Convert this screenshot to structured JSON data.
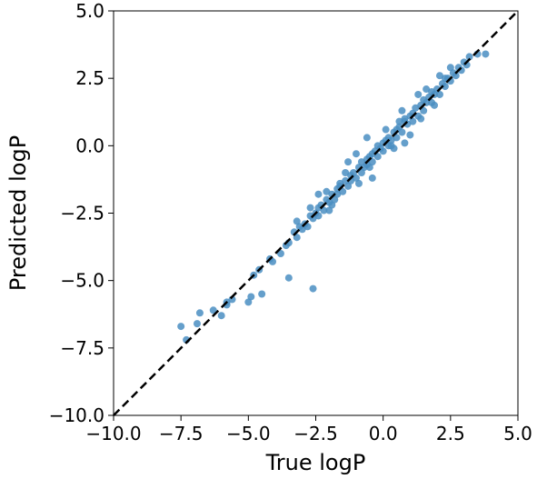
{
  "chart_data": {
    "type": "scatter",
    "title": "",
    "xlabel": "True logP",
    "ylabel": "Predicted logP",
    "xlim": [
      -10.0,
      5.0
    ],
    "ylim": [
      -10.0,
      5.0
    ],
    "xticks": [
      -10.0,
      -7.5,
      -5.0,
      -2.5,
      0.0,
      2.5,
      5.0
    ],
    "yticks": [
      -10.0,
      -7.5,
      -5.0,
      -2.5,
      0.0,
      2.5,
      5.0
    ],
    "xtick_labels": [
      "−10.0",
      "−7.5",
      "−5.0",
      "−2.5",
      "0.0",
      "2.5",
      "5.0"
    ],
    "ytick_labels": [
      "−10.0",
      "−7.5",
      "−5.0",
      "−2.5",
      "0.0",
      "2.5",
      "5.0"
    ],
    "grid": false,
    "point_color": "#4a8ec2",
    "reference_line": {
      "style": "dashed",
      "color": "#000000",
      "from": [
        -10.0,
        -10.0
      ],
      "to": [
        5.0,
        5.0
      ]
    },
    "points": [
      [
        -7.5,
        -6.7
      ],
      [
        -7.3,
        -7.2
      ],
      [
        -6.9,
        -6.6
      ],
      [
        -6.8,
        -6.2
      ],
      [
        -6.3,
        -6.1
      ],
      [
        -6.0,
        -6.3
      ],
      [
        -5.8,
        -5.8
      ],
      [
        -5.8,
        -5.9
      ],
      [
        -5.6,
        -5.7
      ],
      [
        -5.0,
        -5.8
      ],
      [
        -4.9,
        -5.6
      ],
      [
        -4.8,
        -4.8
      ],
      [
        -4.5,
        -5.5
      ],
      [
        -4.6,
        -4.6
      ],
      [
        -4.2,
        -4.2
      ],
      [
        -4.1,
        -4.3
      ],
      [
        -3.8,
        -4.0
      ],
      [
        -3.6,
        -3.7
      ],
      [
        -3.5,
        -3.6
      ],
      [
        -3.3,
        -3.2
      ],
      [
        -3.2,
        -3.4
      ],
      [
        -3.1,
        -3.0
      ],
      [
        -3.0,
        -3.1
      ],
      [
        -3.5,
        -4.9
      ],
      [
        -2.6,
        -5.3
      ],
      [
        -2.9,
        -2.9
      ],
      [
        -2.8,
        -3.0
      ],
      [
        -2.7,
        -2.6
      ],
      [
        -2.6,
        -2.7
      ],
      [
        -2.5,
        -2.5
      ],
      [
        -2.4,
        -2.3
      ],
      [
        -2.4,
        -2.6
      ],
      [
        -2.3,
        -2.2
      ],
      [
        -2.2,
        -2.4
      ],
      [
        -2.1,
        -2.0
      ],
      [
        -2.0,
        -2.1
      ],
      [
        -1.9,
        -1.8
      ],
      [
        -1.8,
        -2.0
      ],
      [
        -1.7,
        -1.6
      ],
      [
        -1.7,
        -1.8
      ],
      [
        -1.6,
        -1.5
      ],
      [
        -1.5,
        -1.7
      ],
      [
        -1.4,
        -1.3
      ],
      [
        -1.3,
        -1.5
      ],
      [
        -1.2,
        -1.1
      ],
      [
        -1.2,
        -1.3
      ],
      [
        -1.1,
        -1.0
      ],
      [
        -1.0,
        -1.2
      ],
      [
        -0.9,
        -0.8
      ],
      [
        -0.8,
        -1.0
      ],
      [
        -0.8,
        -0.6
      ],
      [
        -0.7,
        -0.8
      ],
      [
        -0.6,
        -0.5
      ],
      [
        -0.6,
        -0.7
      ],
      [
        -0.5,
        -0.4
      ],
      [
        -0.4,
        -0.6
      ],
      [
        -0.4,
        -0.3
      ],
      [
        -0.3,
        -0.2
      ],
      [
        -0.2,
        -0.4
      ],
      [
        -0.2,
        0.0
      ],
      [
        -0.1,
        -0.1
      ],
      [
        0.0,
        0.1
      ],
      [
        0.0,
        -0.2
      ],
      [
        0.1,
        0.2
      ],
      [
        0.2,
        0.0
      ],
      [
        0.2,
        0.3
      ],
      [
        0.3,
        0.2
      ],
      [
        0.4,
        0.5
      ],
      [
        0.5,
        0.3
      ],
      [
        0.5,
        0.6
      ],
      [
        0.6,
        0.7
      ],
      [
        0.7,
        0.5
      ],
      [
        0.8,
        0.9
      ],
      [
        0.8,
        1.0
      ],
      [
        0.9,
        0.8
      ],
      [
        1.0,
        1.1
      ],
      [
        1.1,
        0.9
      ],
      [
        1.1,
        1.2
      ],
      [
        1.2,
        1.4
      ],
      [
        1.3,
        1.1
      ],
      [
        1.4,
        1.5
      ],
      [
        1.5,
        1.3
      ],
      [
        1.5,
        1.7
      ],
      [
        1.6,
        1.6
      ],
      [
        1.7,
        1.8
      ],
      [
        1.8,
        1.6
      ],
      [
        1.8,
        2.0
      ],
      [
        1.9,
        1.9
      ],
      [
        2.0,
        2.1
      ],
      [
        2.1,
        1.9
      ],
      [
        2.2,
        2.3
      ],
      [
        2.3,
        2.2
      ],
      [
        2.4,
        2.5
      ],
      [
        2.5,
        2.4
      ],
      [
        2.6,
        2.7
      ],
      [
        2.7,
        2.6
      ],
      [
        2.8,
        2.9
      ],
      [
        2.9,
        2.8
      ],
      [
        3.0,
        3.1
      ],
      [
        3.1,
        3.0
      ],
      [
        3.2,
        3.3
      ],
      [
        3.5,
        3.4
      ],
      [
        3.8,
        3.4
      ],
      [
        -1.6,
        -1.4
      ],
      [
        -2.0,
        -2.4
      ],
      [
        -0.4,
        -1.2
      ],
      [
        -1.3,
        -0.6
      ],
      [
        1.3,
        1.9
      ],
      [
        0.8,
        0.1
      ],
      [
        1.6,
        2.1
      ],
      [
        0.7,
        1.3
      ],
      [
        2.1,
        2.6
      ],
      [
        1.0,
        0.4
      ],
      [
        -0.6,
        0.3
      ],
      [
        -2.4,
        -1.8
      ],
      [
        -3.2,
        -2.8
      ],
      [
        -1.0,
        -0.3
      ],
      [
        0.4,
        -0.1
      ],
      [
        2.5,
        2.9
      ],
      [
        -1.9,
        -2.2
      ],
      [
        0.1,
        0.6
      ],
      [
        -0.9,
        -1.4
      ],
      [
        -2.1,
        -1.7
      ],
      [
        1.4,
        1.0
      ],
      [
        2.3,
        2.5
      ],
      [
        -0.5,
        -0.8
      ],
      [
        0.6,
        0.9
      ],
      [
        -1.4,
        -1.0
      ],
      [
        1.9,
        1.5
      ],
      [
        -2.7,
        -2.3
      ],
      [
        0.3,
        0.0
      ]
    ]
  }
}
